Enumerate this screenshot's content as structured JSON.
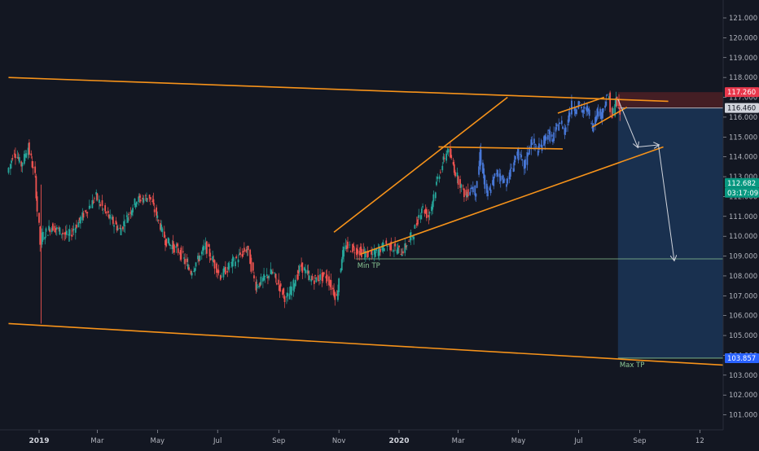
{
  "chart_data": {
    "type": "candlestick",
    "title": "",
    "xlabel": "",
    "ylabel": "",
    "ylim": [
      100.0,
      121.6
    ],
    "grid": false,
    "x_ticks": [
      "2019",
      "Mar",
      "May",
      "Jul",
      "Sep",
      "Nov",
      "2020",
      "Mar",
      "May",
      "Jul",
      "Sep",
      "12"
    ],
    "y_ticks": [
      101.0,
      102.0,
      103.0,
      104.0,
      105.0,
      106.0,
      107.0,
      108.0,
      109.0,
      110.0,
      111.0,
      112.0,
      113.0,
      114.0,
      115.0,
      116.0,
      117.0,
      118.0,
      119.0,
      120.0,
      121.0
    ],
    "y_tick_labels": [
      "101.000",
      "102.000",
      "103.000",
      "104.000",
      "105.000",
      "106.000",
      "107.000",
      "108.000",
      "109.000",
      "110.000",
      "111.000",
      "112.000",
      "113.000",
      "114.000",
      "115.000",
      "116.000",
      "117.000",
      "118.000",
      "119.000",
      "120.000",
      "121.000"
    ],
    "price_path": [
      [
        "2018-12-01",
        113.2
      ],
      [
        "2018-12-08",
        114.3
      ],
      [
        "2018-12-15",
        113.6
      ],
      [
        "2018-12-22",
        114.5
      ],
      [
        "2018-12-29",
        113.0
      ],
      [
        "2019-01-03",
        109.6
      ],
      [
        "2019-01-05",
        110.0
      ],
      [
        "2019-01-15",
        110.5
      ],
      [
        "2019-02-01",
        110.0
      ],
      [
        "2019-02-15",
        111.0
      ],
      [
        "2019-03-01",
        112.0
      ],
      [
        "2019-03-10",
        111.2
      ],
      [
        "2019-03-25",
        110.3
      ],
      [
        "2019-04-10",
        111.8
      ],
      [
        "2019-04-24",
        112.0
      ],
      [
        "2019-05-10",
        109.8
      ],
      [
        "2019-05-25",
        109.2
      ],
      [
        "2019-06-05",
        108.2
      ],
      [
        "2019-06-20",
        109.5
      ],
      [
        "2019-07-05",
        108.0
      ],
      [
        "2019-07-20",
        108.8
      ],
      [
        "2019-08-01",
        109.4
      ],
      [
        "2019-08-10",
        107.5
      ],
      [
        "2019-08-26",
        108.2
      ],
      [
        "2019-09-10",
        106.8
      ],
      [
        "2019-09-25",
        108.5
      ],
      [
        "2019-10-05",
        107.8
      ],
      [
        "2019-10-20",
        108.0
      ],
      [
        "2019-10-31",
        106.9
      ],
      [
        "2019-11-05",
        109.0
      ],
      [
        "2019-11-10",
        109.5
      ],
      [
        "2019-11-20",
        109.3
      ],
      [
        "2019-12-05",
        109.0
      ],
      [
        "2019-12-20",
        109.6
      ],
      [
        "2020-01-05",
        109.2
      ],
      [
        "2020-01-17",
        110.2
      ],
      [
        "2020-01-25",
        111.5
      ],
      [
        "2020-02-01",
        111.0
      ],
      [
        "2020-02-12",
        113.2
      ],
      [
        "2020-02-20",
        114.4
      ],
      [
        "2020-03-01",
        113.0
      ],
      [
        "2020-03-10",
        112.0
      ],
      [
        "2020-03-15",
        112.5
      ],
      [
        "2020-03-20",
        112.2
      ],
      [
        "2020-03-24",
        114.2
      ],
      [
        "2020-03-31",
        112.0
      ],
      [
        "2020-04-10",
        113.2
      ],
      [
        "2020-04-20",
        112.7
      ],
      [
        "2020-05-01",
        114.2
      ],
      [
        "2020-05-08",
        113.5
      ],
      [
        "2020-05-15",
        114.8
      ],
      [
        "2020-05-22",
        114.3
      ],
      [
        "2020-06-01",
        115.2
      ],
      [
        "2020-06-06",
        114.8
      ],
      [
        "2020-06-12",
        115.8
      ],
      [
        "2020-06-18",
        115.3
      ],
      [
        "2020-06-25",
        116.6
      ],
      [
        "2020-06-29",
        116.4
      ],
      [
        "2020-07-02",
        116.7
      ],
      [
        "2020-07-06",
        116.2
      ],
      [
        "2020-07-11",
        116.5
      ],
      [
        "2020-07-16",
        115.4
      ],
      [
        "2020-07-20",
        116.3
      ],
      [
        "2020-07-25",
        116.1
      ],
      [
        "2020-07-30",
        116.9
      ],
      [
        "2020-08-02",
        117.0
      ],
      [
        "2020-08-05",
        116.0
      ],
      [
        "2020-08-09",
        116.9
      ],
      [
        "2020-08-13",
        116.2
      ]
    ],
    "trendlines": [
      {
        "name": "channel-upper",
        "color": "#f7931a",
        "p1": [
          "2018-12-01",
          118.0
        ],
        "p2": [
          "2020-09-30",
          116.8
        ]
      },
      {
        "name": "channel-lower",
        "color": "#f7931a",
        "p1": [
          "2018-12-01",
          105.6
        ],
        "p2": [
          "2021-01-01",
          103.4
        ]
      },
      {
        "name": "rise-upper",
        "color": "#f7931a",
        "p1": [
          "2019-10-27",
          110.2
        ],
        "p2": [
          "2020-04-20",
          117.0
        ]
      },
      {
        "name": "rise-lower",
        "color": "#f7931a",
        "p1": [
          "2019-11-23",
          109.1
        ],
        "p2": [
          "2020-09-25",
          114.5
        ]
      },
      {
        "name": "flag-top",
        "color": "#f7931a",
        "p1": [
          "2020-02-10",
          114.5
        ],
        "p2": [
          "2020-06-15",
          114.4
        ]
      },
      {
        "name": "wedge-upper",
        "color": "#f7931a",
        "p1": [
          "2020-06-10",
          116.2
        ],
        "p2": [
          "2020-07-27",
          117.0
        ]
      },
      {
        "name": "wedge-lower",
        "color": "#f7931a",
        "p1": [
          "2020-07-15",
          115.5
        ],
        "p2": [
          "2020-08-19",
          116.5
        ]
      }
    ],
    "projection": [
      [
        "2020-08-10",
        116.9
      ],
      [
        "2020-08-30",
        114.5
      ],
      [
        "2020-09-20",
        114.6
      ],
      [
        "2020-10-06",
        108.8
      ]
    ],
    "position": {
      "start": "2020-08-10",
      "end": "2020-12-18",
      "stop": 117.26,
      "entry": 116.46,
      "target": 103.857
    },
    "levels": [
      {
        "name": "Min TP",
        "value": 108.86,
        "from": "2019-11-18",
        "color": "#8bc795"
      },
      {
        "name": "Max TP",
        "value": 103.857,
        "from": "2020-08-10",
        "color": "#8bc795"
      }
    ],
    "price_labels": [
      {
        "text": "117.260",
        "value": 117.26,
        "bg": "#e8384c",
        "fg": "#ffffff"
      },
      {
        "text": "116.460",
        "value": 116.46,
        "bg": "#d1d4dc",
        "fg": "#131722"
      },
      {
        "text": "112.682",
        "value": 112.682,
        "bg": "#089981",
        "fg": "#ffffff"
      },
      {
        "text": "03:17:09",
        "value": 112.682,
        "bg": "#089981",
        "fg": "#ffffff",
        "sub": true
      },
      {
        "text": "103.857",
        "value": 103.857,
        "bg": "#2962ff",
        "fg": "#ffffff"
      }
    ],
    "colors": {
      "background": "#131722",
      "up": "#26a69a",
      "down": "#ef5350",
      "trendline": "#f7931a",
      "projection": "#d1d4dc",
      "pattern": "#4878d8",
      "stop_zone": "#4a1f25",
      "target_zone": "#1b3557",
      "axis_text": "#b2b5be"
    }
  }
}
